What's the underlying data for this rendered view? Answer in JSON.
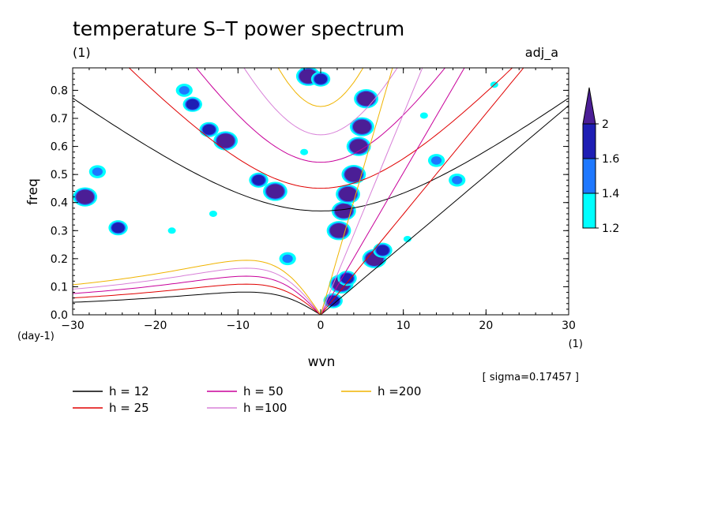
{
  "colors": {
    "level_1_2": "#00ffff",
    "level_1_4": "#1e78ff",
    "level_1_6": "#1e1eb4",
    "level_2": "#4b1e96",
    "h12": "#000000",
    "h25": "#e00000",
    "h50": "#c8009a",
    "h100": "#d880d8",
    "h200": "#f0b400"
  },
  "chart_data": {
    "type": "heatmap",
    "title": "temperature S–T power spectrum",
    "subtitle_left": "(1)",
    "subtitle_right": "adj_a",
    "xlabel": "wvn",
    "ylabel": "freq",
    "x_unit_label": "(1)",
    "y_unit_label": "(day-1)",
    "xlim": [
      -30,
      30
    ],
    "ylim": [
      0,
      0.88
    ],
    "x_ticks": [
      -30,
      -20,
      -10,
      0,
      10,
      20,
      30
    ],
    "x_tick_labels": [
      "−30",
      "−20",
      "−10",
      "0",
      "10",
      "20",
      "30"
    ],
    "y_ticks": [
      0,
      0.1,
      0.2,
      0.3,
      0.4,
      0.5,
      0.6,
      0.7,
      0.8
    ],
    "y_tick_labels": [
      "0.0",
      "0.1",
      "0.2",
      "0.3",
      "0.4",
      "0.5",
      "0.6",
      "0.7",
      "0.8"
    ],
    "colorbar": {
      "levels": [
        1.2,
        1.4,
        1.6,
        2
      ],
      "labels": [
        "1.2",
        "1.4",
        "1.6",
        "2"
      ],
      "colors": [
        "#00ffff",
        "#1e78ff",
        "#1e1eb4",
        "#4b1e96"
      ]
    },
    "note": "[ sigma=0.17457 ]",
    "dispersion_curves": [
      {
        "h": 12,
        "label": "h = 12"
      },
      {
        "h": 25,
        "label": "h = 25"
      },
      {
        "h": 50,
        "label": "h = 50"
      },
      {
        "h": 100,
        "label": "h =100"
      },
      {
        "h": 200,
        "label": "h =200"
      }
    ],
    "kelvin_slopes_per_h": {
      "12": 0.0226,
      "25": 0.0326,
      "50": 0.046,
      "100": 0.065,
      "200": 0.092
    },
    "blobs": [
      {
        "x": 1.5,
        "y": 0.05,
        "value": 1.6
      },
      {
        "x": 2.5,
        "y": 0.11,
        "value": 2
      },
      {
        "x": 3.2,
        "y": 0.13,
        "value": 1.6
      },
      {
        "x": 6.5,
        "y": 0.2,
        "value": 2
      },
      {
        "x": 7.5,
        "y": 0.23,
        "value": 1.6
      },
      {
        "x": 2.2,
        "y": 0.3,
        "value": 2
      },
      {
        "x": 2.8,
        "y": 0.37,
        "value": 2
      },
      {
        "x": 3.3,
        "y": 0.43,
        "value": 2
      },
      {
        "x": 4.0,
        "y": 0.5,
        "value": 2
      },
      {
        "x": 4.6,
        "y": 0.6,
        "value": 2
      },
      {
        "x": 5.0,
        "y": 0.67,
        "value": 2
      },
      {
        "x": 5.5,
        "y": 0.77,
        "value": 2
      },
      {
        "x": -1.5,
        "y": 0.85,
        "value": 2
      },
      {
        "x": 0.0,
        "y": 0.84,
        "value": 1.6
      },
      {
        "x": -5.5,
        "y": 0.44,
        "value": 2
      },
      {
        "x": -7.5,
        "y": 0.48,
        "value": 1.6
      },
      {
        "x": -11.5,
        "y": 0.62,
        "value": 2
      },
      {
        "x": -13.5,
        "y": 0.66,
        "value": 1.6
      },
      {
        "x": -15.5,
        "y": 0.75,
        "value": 1.6
      },
      {
        "x": -16.5,
        "y": 0.8,
        "value": 1.4
      },
      {
        "x": -28.5,
        "y": 0.42,
        "value": 2
      },
      {
        "x": -24.5,
        "y": 0.31,
        "value": 1.6
      },
      {
        "x": -27.0,
        "y": 0.51,
        "value": 1.4
      },
      {
        "x": 14.0,
        "y": 0.55,
        "value": 1.4
      },
      {
        "x": 16.5,
        "y": 0.48,
        "value": 1.4
      },
      {
        "x": 21.0,
        "y": 0.82,
        "value": 1.2
      },
      {
        "x": -4.0,
        "y": 0.2,
        "value": 1.4
      },
      {
        "x": -18.0,
        "y": 0.3,
        "value": 1.2
      },
      {
        "x": -13.0,
        "y": 0.36,
        "value": 1.2
      },
      {
        "x": 10.5,
        "y": 0.27,
        "value": 1.2
      },
      {
        "x": 12.5,
        "y": 0.71,
        "value": 1.2
      },
      {
        "x": -2.0,
        "y": 0.58,
        "value": 1.2
      }
    ]
  },
  "legend": [
    {
      "key": "h12",
      "label": "h = 12"
    },
    {
      "key": "h25",
      "label": "h = 25"
    },
    {
      "key": "h50",
      "label": "h = 50"
    },
    {
      "key": "h100",
      "label": "h =100"
    },
    {
      "key": "h200",
      "label": "h =200"
    }
  ]
}
